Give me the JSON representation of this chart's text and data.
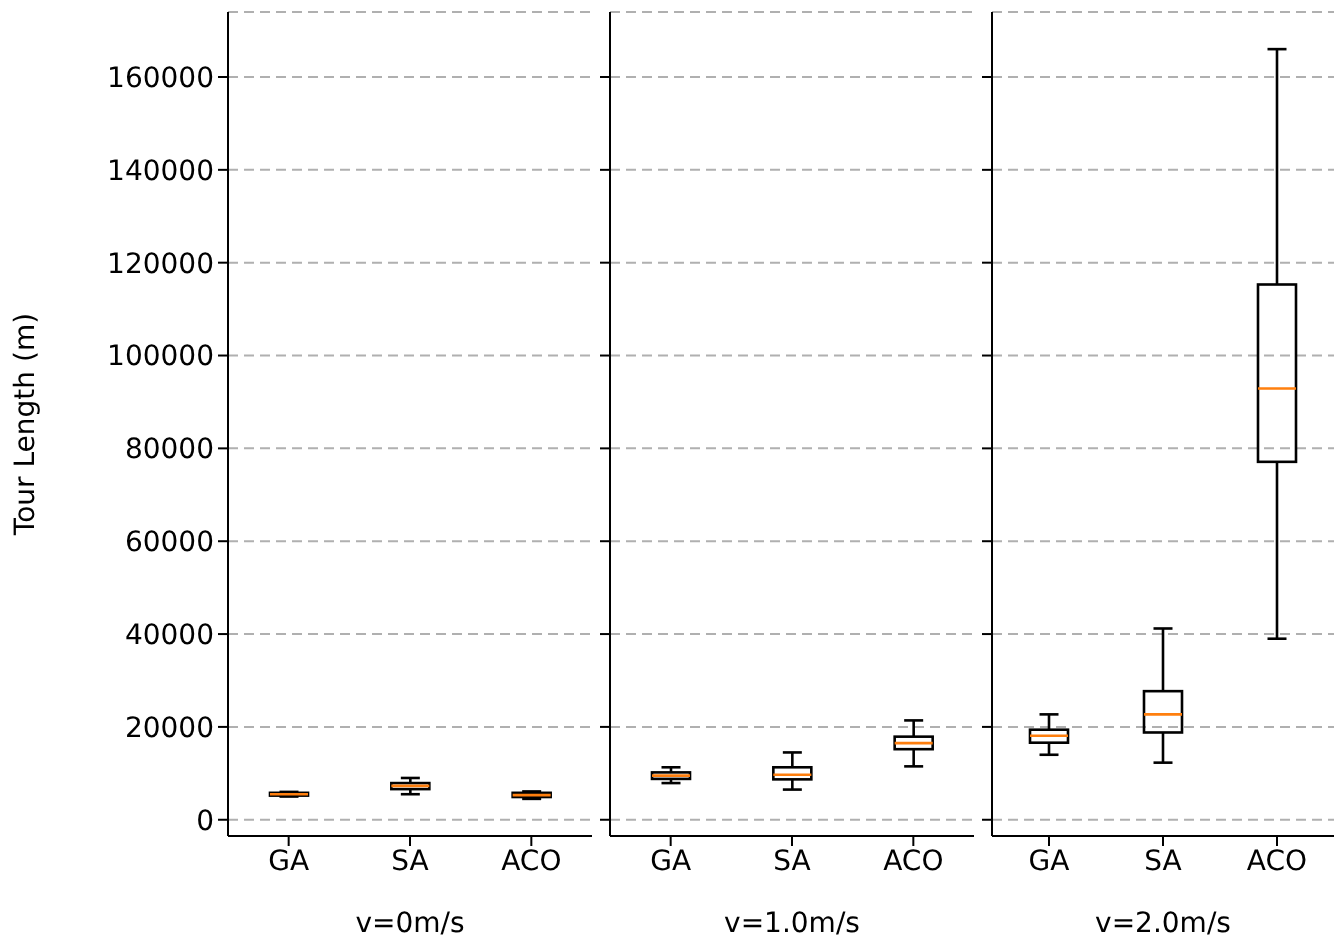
{
  "chart_data": [
    {
      "type": "box",
      "categories": [
        "GA",
        "SA",
        "ACO"
      ],
      "xlabel": "v=0m/s",
      "ylabel": "Tour Length (m)",
      "ylim": [
        -3500,
        174000
      ],
      "yticks": [
        0,
        20000,
        40000,
        60000,
        80000,
        100000,
        120000,
        140000,
        160000
      ],
      "grid": "y",
      "boxes": [
        {
          "low": 5000,
          "q1": 5200,
          "median": 5500,
          "q3": 5800,
          "high": 6000
        },
        {
          "low": 5500,
          "q1": 6600,
          "median": 7300,
          "q3": 7900,
          "high": 9000
        },
        {
          "low": 4500,
          "q1": 4900,
          "median": 5300,
          "q3": 5800,
          "high": 6100
        }
      ]
    },
    {
      "type": "box",
      "categories": [
        "GA",
        "SA",
        "ACO"
      ],
      "xlabel": "v=1.0m/s",
      "ylim": [
        -3500,
        174000
      ],
      "yticks": [
        0,
        20000,
        40000,
        60000,
        80000,
        100000,
        120000,
        140000,
        160000
      ],
      "grid": "y",
      "tick_labels": "x",
      "boxes": [
        {
          "low": 7900,
          "q1": 8800,
          "median": 9500,
          "q3": 10200,
          "high": 11300
        },
        {
          "low": 6500,
          "q1": 8700,
          "median": 9700,
          "q3": 11300,
          "high": 14500
        },
        {
          "low": 11500,
          "q1": 15200,
          "median": 16500,
          "q3": 17900,
          "high": 21400
        }
      ]
    },
    {
      "type": "box",
      "categories": [
        "GA",
        "SA",
        "ACO"
      ],
      "xlabel": "v=2.0m/s",
      "ylim": [
        -3500,
        174000
      ],
      "yticks": [
        0,
        20000,
        40000,
        60000,
        80000,
        100000,
        120000,
        140000,
        160000
      ],
      "grid": "y",
      "tick_labels": "x",
      "boxes": [
        {
          "low": 14000,
          "q1": 16600,
          "median": 18100,
          "q3": 19400,
          "high": 22700
        },
        {
          "low": 12300,
          "q1": 18800,
          "median": 22700,
          "q3": 27700,
          "high": 41200
        },
        {
          "low": 39000,
          "q1": 77100,
          "median": 92900,
          "q3": 115300,
          "high": 166000
        }
      ]
    }
  ]
}
